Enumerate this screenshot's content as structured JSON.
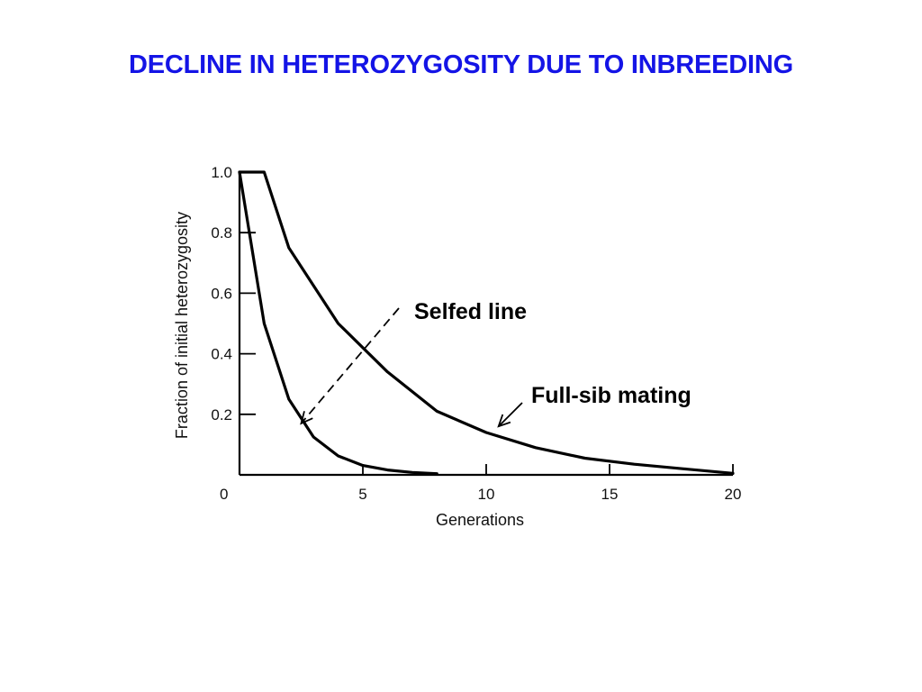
{
  "slide": {
    "title": "DECLINE IN HETEROZYGOSITY DUE TO INBREEDING",
    "title_color": "#1414e6"
  },
  "chart_data": {
    "type": "line",
    "xlabel": "Generations",
    "ylabel": "Fraction of initial heterozygosity",
    "xlim": [
      0,
      20
    ],
    "ylim": [
      0,
      1.0
    ],
    "xticks": [
      0,
      5,
      10,
      15,
      20
    ],
    "yticks": [
      0.2,
      0.4,
      0.6,
      0.8,
      1.0
    ],
    "grid": false,
    "series": [
      {
        "name": "Selfed line",
        "x": [
          0,
          1,
          2,
          3,
          4,
          5,
          6,
          7,
          8
        ],
        "y": [
          1.0,
          0.5,
          0.25,
          0.125,
          0.0625,
          0.031,
          0.016,
          0.008,
          0.004
        ]
      },
      {
        "name": "Full-sib mating",
        "x": [
          0,
          1,
          2,
          4,
          6,
          8,
          10,
          12,
          14,
          16,
          18,
          20
        ],
        "y": [
          1.0,
          1.0,
          0.75,
          0.5,
          0.34,
          0.21,
          0.14,
          0.09,
          0.055,
          0.035,
          0.02,
          0.005
        ]
      }
    ],
    "annotations": [
      {
        "text": "Selfed line",
        "target_x": 2.5,
        "target_y": 0.17
      },
      {
        "text": "Full-sib mating",
        "target_x": 10.5,
        "target_y": 0.16
      }
    ]
  }
}
